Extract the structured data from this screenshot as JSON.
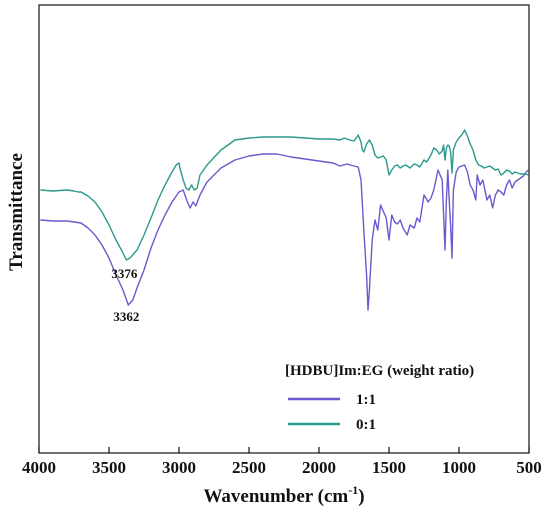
{
  "chart_data": {
    "type": "line",
    "title": "",
    "xlabel": "Wavenumber (cm",
    "xlabel_sup": "-1",
    "xlabel_close": ")",
    "ylabel": "Transmittance",
    "xlim": [
      4000,
      500
    ],
    "x_reversed": true,
    "xticks": [
      4000,
      3500,
      3000,
      2500,
      2000,
      1500,
      1000,
      500
    ],
    "xtick_labels": [
      "4000",
      "3500",
      "3000",
      "2500",
      "2000",
      "1500",
      "1000",
      "500"
    ],
    "y_ticks_shown": false,
    "grid": false,
    "legend_position": "bottom-right",
    "legend_title": "[HDBU]Im:EG (weight ratio)",
    "annotations": [
      {
        "text": "3376",
        "x": 3376,
        "series": "0:1"
      },
      {
        "text": "3362",
        "x": 3362,
        "series": "1:1"
      }
    ],
    "series": [
      {
        "name": "1:1",
        "color": "#6a5acd",
        "points": [
          [
            3990,
            60
          ],
          [
            3900,
            61
          ],
          [
            3800,
            61
          ],
          [
            3750,
            62
          ],
          [
            3700,
            63
          ],
          [
            3650,
            68
          ],
          [
            3600,
            75
          ],
          [
            3550,
            85
          ],
          [
            3500,
            98
          ],
          [
            3450,
            115
          ],
          [
            3400,
            130
          ],
          [
            3362,
            145
          ],
          [
            3330,
            140
          ],
          [
            3300,
            128
          ],
          [
            3250,
            110
          ],
          [
            3200,
            88
          ],
          [
            3150,
            70
          ],
          [
            3100,
            55
          ],
          [
            3050,
            42
          ],
          [
            3000,
            32
          ],
          [
            2970,
            30
          ],
          [
            2940,
            42
          ],
          [
            2920,
            48
          ],
          [
            2900,
            42
          ],
          [
            2880,
            46
          ],
          [
            2850,
            35
          ],
          [
            2800,
            22
          ],
          [
            2700,
            8
          ],
          [
            2600,
            0
          ],
          [
            2500,
            -4
          ],
          [
            2400,
            -6
          ],
          [
            2300,
            -6
          ],
          [
            2200,
            -3
          ],
          [
            2100,
            -1
          ],
          [
            2000,
            1
          ],
          [
            1900,
            3
          ],
          [
            1850,
            6
          ],
          [
            1800,
            4
          ],
          [
            1750,
            6
          ],
          [
            1720,
            7
          ],
          [
            1700,
            20
          ],
          [
            1680,
            70
          ],
          [
            1660,
            115
          ],
          [
            1650,
            150
          ],
          [
            1640,
            130
          ],
          [
            1620,
            80
          ],
          [
            1600,
            60
          ],
          [
            1580,
            70
          ],
          [
            1560,
            45
          ],
          [
            1520,
            58
          ],
          [
            1500,
            80
          ],
          [
            1480,
            55
          ],
          [
            1460,
            62
          ],
          [
            1440,
            64
          ],
          [
            1420,
            60
          ],
          [
            1400,
            68
          ],
          [
            1370,
            75
          ],
          [
            1350,
            65
          ],
          [
            1320,
            68
          ],
          [
            1300,
            58
          ],
          [
            1280,
            62
          ],
          [
            1250,
            35
          ],
          [
            1220,
            42
          ],
          [
            1200,
            38
          ],
          [
            1180,
            30
          ],
          [
            1150,
            10
          ],
          [
            1120,
            20
          ],
          [
            1100,
            90
          ],
          [
            1090,
            40
          ],
          [
            1080,
            10
          ],
          [
            1070,
            40
          ],
          [
            1060,
            65
          ],
          [
            1050,
            98
          ],
          [
            1040,
            30
          ],
          [
            1020,
            12
          ],
          [
            1000,
            7
          ],
          [
            980,
            6
          ],
          [
            960,
            5
          ],
          [
            940,
            12
          ],
          [
            920,
            25
          ],
          [
            900,
            30
          ],
          [
            880,
            40
          ],
          [
            870,
            15
          ],
          [
            850,
            25
          ],
          [
            830,
            20
          ],
          [
            800,
            40
          ],
          [
            780,
            35
          ],
          [
            760,
            48
          ],
          [
            740,
            35
          ],
          [
            720,
            30
          ],
          [
            700,
            32
          ],
          [
            680,
            35
          ],
          [
            660,
            25
          ],
          [
            640,
            20
          ],
          [
            620,
            28
          ],
          [
            600,
            22
          ],
          [
            580,
            20
          ],
          [
            560,
            18
          ],
          [
            540,
            16
          ],
          [
            520,
            12
          ],
          [
            505,
            10
          ]
        ]
      },
      {
        "name": "0:1",
        "color": "#2a9a8e",
        "points": [
          [
            3990,
            60
          ],
          [
            3900,
            61
          ],
          [
            3800,
            60
          ],
          [
            3750,
            61
          ],
          [
            3720,
            62
          ],
          [
            3700,
            62
          ],
          [
            3650,
            66
          ],
          [
            3600,
            72
          ],
          [
            3550,
            82
          ],
          [
            3500,
            95
          ],
          [
            3450,
            110
          ],
          [
            3400,
            123
          ],
          [
            3376,
            130
          ],
          [
            3350,
            128
          ],
          [
            3300,
            120
          ],
          [
            3250,
            105
          ],
          [
            3200,
            88
          ],
          [
            3150,
            70
          ],
          [
            3100,
            55
          ],
          [
            3050,
            42
          ],
          [
            3020,
            35
          ],
          [
            3000,
            33
          ],
          [
            2990,
            40
          ],
          [
            2970,
            50
          ],
          [
            2950,
            58
          ],
          [
            2930,
            60
          ],
          [
            2910,
            55
          ],
          [
            2890,
            60
          ],
          [
            2870,
            58
          ],
          [
            2850,
            45
          ],
          [
            2800,
            35
          ],
          [
            2700,
            20
          ],
          [
            2600,
            10
          ],
          [
            2500,
            8
          ],
          [
            2400,
            7
          ],
          [
            2300,
            7
          ],
          [
            2200,
            7
          ],
          [
            2100,
            8
          ],
          [
            2000,
            9
          ],
          [
            1900,
            9
          ],
          [
            1850,
            10
          ],
          [
            1820,
            8
          ],
          [
            1800,
            9
          ],
          [
            1780,
            10
          ],
          [
            1750,
            11
          ],
          [
            1720,
            5
          ],
          [
            1700,
            12
          ],
          [
            1690,
            20
          ],
          [
            1680,
            22
          ],
          [
            1660,
            14
          ],
          [
            1640,
            10
          ],
          [
            1620,
            15
          ],
          [
            1600,
            25
          ],
          [
            1580,
            28
          ],
          [
            1560,
            27
          ],
          [
            1540,
            26
          ],
          [
            1520,
            30
          ],
          [
            1500,
            45
          ],
          [
            1480,
            40
          ],
          [
            1460,
            36
          ],
          [
            1440,
            35
          ],
          [
            1420,
            38
          ],
          [
            1400,
            36
          ],
          [
            1380,
            35
          ],
          [
            1350,
            38
          ],
          [
            1320,
            34
          ],
          [
            1300,
            35
          ],
          [
            1280,
            37
          ],
          [
            1250,
            30
          ],
          [
            1230,
            32
          ],
          [
            1200,
            25
          ],
          [
            1180,
            18
          ],
          [
            1160,
            20
          ],
          [
            1140,
            24
          ],
          [
            1120,
            21
          ],
          [
            1110,
            15
          ],
          [
            1100,
            30
          ],
          [
            1090,
            18
          ],
          [
            1080,
            15
          ],
          [
            1070,
            16
          ],
          [
            1060,
            22
          ],
          [
            1050,
            43
          ],
          [
            1040,
            20
          ],
          [
            1020,
            12
          ],
          [
            1000,
            8
          ],
          [
            980,
            5
          ],
          [
            960,
            0
          ],
          [
            940,
            6
          ],
          [
            920,
            14
          ],
          [
            900,
            20
          ],
          [
            880,
            30
          ],
          [
            860,
            35
          ],
          [
            840,
            36
          ],
          [
            820,
            38
          ],
          [
            800,
            37
          ],
          [
            780,
            36
          ],
          [
            760,
            38
          ],
          [
            740,
            40
          ],
          [
            720,
            39
          ],
          [
            700,
            45
          ],
          [
            680,
            43
          ],
          [
            660,
            40
          ],
          [
            640,
            41
          ],
          [
            620,
            44
          ],
          [
            600,
            42
          ],
          [
            580,
            43
          ],
          [
            560,
            44
          ],
          [
            540,
            44
          ],
          [
            520,
            44
          ],
          [
            505,
            45
          ]
        ]
      }
    ]
  }
}
